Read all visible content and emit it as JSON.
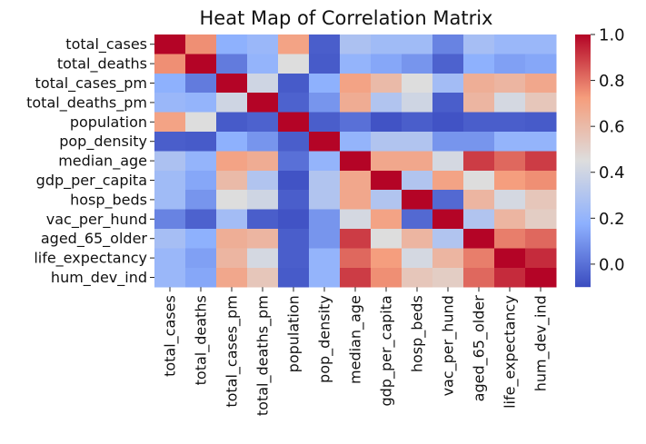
{
  "chart_data": {
    "type": "heatmap",
    "title": "Heat Map of Correlation Matrix",
    "xlabel": "",
    "ylabel": "",
    "row_labels": [
      "total_cases",
      "total_deaths",
      "total_cases_pm",
      "total_deaths_pm",
      "population",
      "pop_density",
      "median_age",
      "gdp_per_capita",
      "hosp_beds",
      "vac_per_hund",
      "aged_65_older",
      "life_expectancy",
      "hum_dev_ind"
    ],
    "col_labels": [
      "total_cases",
      "total_deaths",
      "total_cases_pm",
      "total_deaths_pm",
      "population",
      "pop_density",
      "median_age",
      "gdp_per_capita",
      "hosp_beds",
      "vac_per_hund",
      "aged_65_older",
      "life_expectancy",
      "hum_dev_ind"
    ],
    "values": [
      [
        1.0,
        0.75,
        0.18,
        0.22,
        0.7,
        -0.05,
        0.28,
        0.24,
        0.24,
        0.05,
        0.26,
        0.22,
        0.22
      ],
      [
        0.75,
        1.0,
        0.03,
        0.2,
        0.45,
        -0.06,
        0.2,
        0.15,
        0.1,
        -0.04,
        0.18,
        0.13,
        0.15
      ],
      [
        0.18,
        0.03,
        1.0,
        0.4,
        -0.06,
        0.18,
        0.7,
        0.6,
        0.45,
        0.25,
        0.65,
        0.62,
        0.68
      ],
      [
        0.22,
        0.2,
        0.4,
        1.0,
        -0.04,
        0.1,
        0.66,
        0.3,
        0.4,
        -0.05,
        0.62,
        0.42,
        0.55
      ],
      [
        0.7,
        0.45,
        -0.06,
        -0.04,
        1.0,
        -0.05,
        0.0,
        -0.08,
        -0.05,
        -0.08,
        -0.05,
        -0.05,
        -0.06
      ],
      [
        -0.05,
        -0.06,
        0.18,
        0.1,
        -0.05,
        1.0,
        0.2,
        0.3,
        0.3,
        0.1,
        0.1,
        0.2,
        0.2
      ],
      [
        0.28,
        0.2,
        0.7,
        0.66,
        0.0,
        0.2,
        1.0,
        0.68,
        0.68,
        0.42,
        0.9,
        0.82,
        0.9
      ],
      [
        0.24,
        0.15,
        0.6,
        0.3,
        -0.08,
        0.3,
        0.68,
        1.0,
        0.3,
        0.7,
        0.45,
        0.72,
        0.75
      ],
      [
        0.24,
        0.1,
        0.45,
        0.4,
        -0.05,
        0.3,
        0.68,
        0.3,
        1.0,
        -0.02,
        0.62,
        0.42,
        0.55
      ],
      [
        0.05,
        -0.04,
        0.25,
        -0.05,
        -0.08,
        0.1,
        0.42,
        0.7,
        -0.02,
        1.0,
        0.3,
        0.62,
        0.52
      ],
      [
        0.26,
        0.18,
        0.65,
        0.62,
        -0.05,
        0.1,
        0.9,
        0.45,
        0.62,
        0.3,
        1.0,
        0.78,
        0.82
      ],
      [
        0.22,
        0.13,
        0.62,
        0.42,
        -0.05,
        0.2,
        0.82,
        0.72,
        0.42,
        0.62,
        0.78,
        1.0,
        0.93
      ],
      [
        0.22,
        0.15,
        0.68,
        0.55,
        -0.06,
        0.2,
        0.9,
        0.75,
        0.55,
        0.52,
        0.82,
        0.93,
        1.0
      ]
    ],
    "vmin": -0.1,
    "vmax": 1.0,
    "colormap": "coolwarm",
    "colorbar_ticks": [
      "0.0",
      "0.2",
      "0.4",
      "0.6",
      "0.8",
      "1.0"
    ],
    "grid": false,
    "legend": "colorbar-right"
  }
}
